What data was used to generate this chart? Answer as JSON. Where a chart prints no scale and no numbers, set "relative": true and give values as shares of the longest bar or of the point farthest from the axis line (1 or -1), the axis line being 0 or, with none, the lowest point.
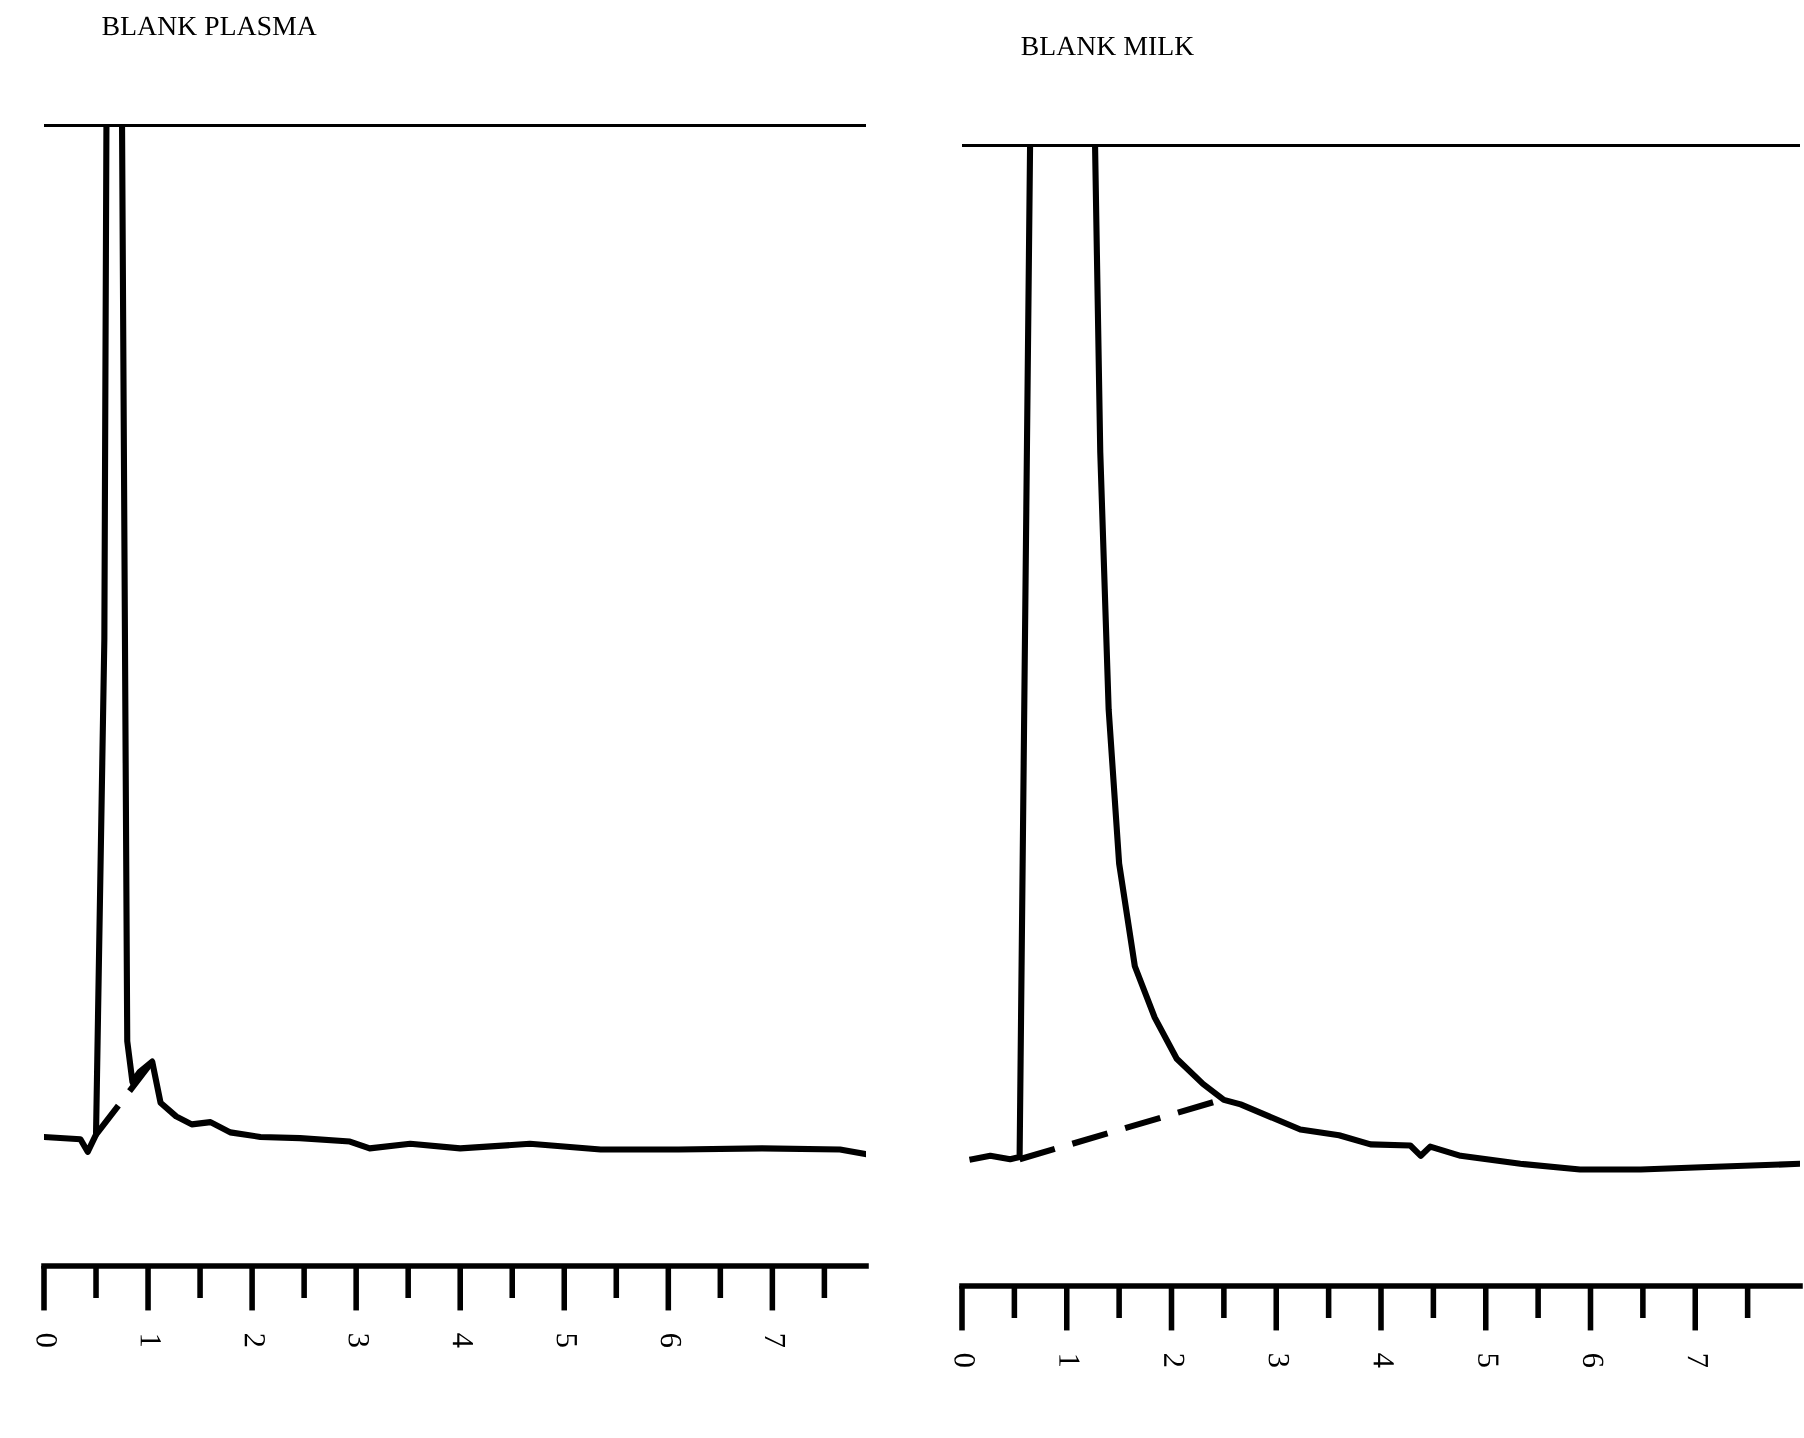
{
  "chart_data": [
    {
      "type": "line",
      "title": "BLANK PLASMA",
      "relative": true,
      "tick_labels": "x",
      "grid": false,
      "xlim": [
        0,
        7.9
      ],
      "xticks": [
        0,
        {
          "value": 0.5,
          "label": null
        },
        1,
        {
          "value": 1.5,
          "label": null
        },
        2,
        {
          "value": 2.5,
          "label": null
        },
        3,
        {
          "value": 3.5,
          "label": null
        },
        4,
        {
          "value": 4.5,
          "label": null
        },
        5,
        {
          "value": 5.5,
          "label": null
        },
        6,
        {
          "value": 6.5,
          "label": null
        },
        7,
        {
          "value": 7.5,
          "label": null
        }
      ],
      "ref_lines": [
        {
          "axis": "y",
          "value": 1,
          "label": null,
          "color": "#000000",
          "line_style": "solid"
        }
      ],
      "series": [
        {
          "color": "#000000",
          "line_style": "solid",
          "x": [
            0.0,
            0.35,
            0.42,
            0.5,
            0.58,
            0.6,
            0.75,
            0.8,
            0.85,
            0.92,
            1.04,
            1.12,
            1.27,
            1.42,
            1.6,
            1.79,
            2.08,
            2.46,
            2.94,
            3.13,
            3.52,
            4.0,
            4.67,
            5.35,
            6.1,
            6.9,
            7.65,
            7.9
          ],
          "values": [
            0.113,
            0.111,
            0.1,
            0.115,
            0.549,
            1,
            1,
            0.197,
            0.161,
            0.17,
            0.179,
            0.143,
            0.131,
            0.124,
            0.126,
            0.117,
            0.113,
            0.112,
            0.109,
            0.103,
            0.107,
            0.103,
            0.107,
            0.102,
            0.102,
            0.103,
            0.102,
            0.098
          ]
        },
        {
          "color": "#000000",
          "line_style": "dashed",
          "x": [
            0.5,
            1.04
          ],
          "values": [
            0.115,
            0.179
          ]
        }
      ]
    },
    {
      "type": "line",
      "title": "BLANK MILK",
      "relative": true,
      "tick_labels": "x",
      "grid": false,
      "xlim": [
        0,
        8.0
      ],
      "xticks": [
        0,
        {
          "value": 0.5,
          "label": null
        },
        1,
        {
          "value": 1.5,
          "label": null
        },
        2,
        {
          "value": 2.5,
          "label": null
        },
        3,
        {
          "value": 3.5,
          "label": null
        },
        4,
        {
          "value": 4.5,
          "label": null
        },
        5,
        {
          "value": 5.5,
          "label": null
        },
        6,
        {
          "value": 6.5,
          "label": null
        },
        7,
        {
          "value": 7.5,
          "label": null
        }
      ],
      "ref_lines": [
        {
          "axis": "y",
          "value": 1,
          "label": null,
          "color": "#000000",
          "line_style": "solid"
        }
      ],
      "series": [
        {
          "color": "#000000",
          "line_style": "solid",
          "x": [
            0.1,
            0.27,
            0.46,
            0.55,
            0.65,
            1.27,
            1.32,
            1.4,
            1.5,
            1.65,
            1.84,
            2.05,
            2.3,
            2.5,
            2.66,
            3.23,
            3.6,
            3.9,
            4.28,
            4.38,
            4.47,
            4.76,
            5.33,
            5.9,
            6.48,
            7.06,
            8.0
          ],
          "values": [
            0.111,
            0.114,
            0.111,
            0.113,
            1,
            1,
            0.73,
            0.505,
            0.37,
            0.28,
            0.235,
            0.199,
            0.177,
            0.163,
            0.159,
            0.137,
            0.132,
            0.124,
            0.123,
            0.114,
            0.122,
            0.114,
            0.107,
            0.102,
            0.102,
            0.104,
            0.107
          ]
        },
        {
          "color": "#000000",
          "line_style": "dashed",
          "x": [
            0.55,
            2.55
          ],
          "values": [
            0.111,
            0.165
          ]
        }
      ]
    }
  ]
}
